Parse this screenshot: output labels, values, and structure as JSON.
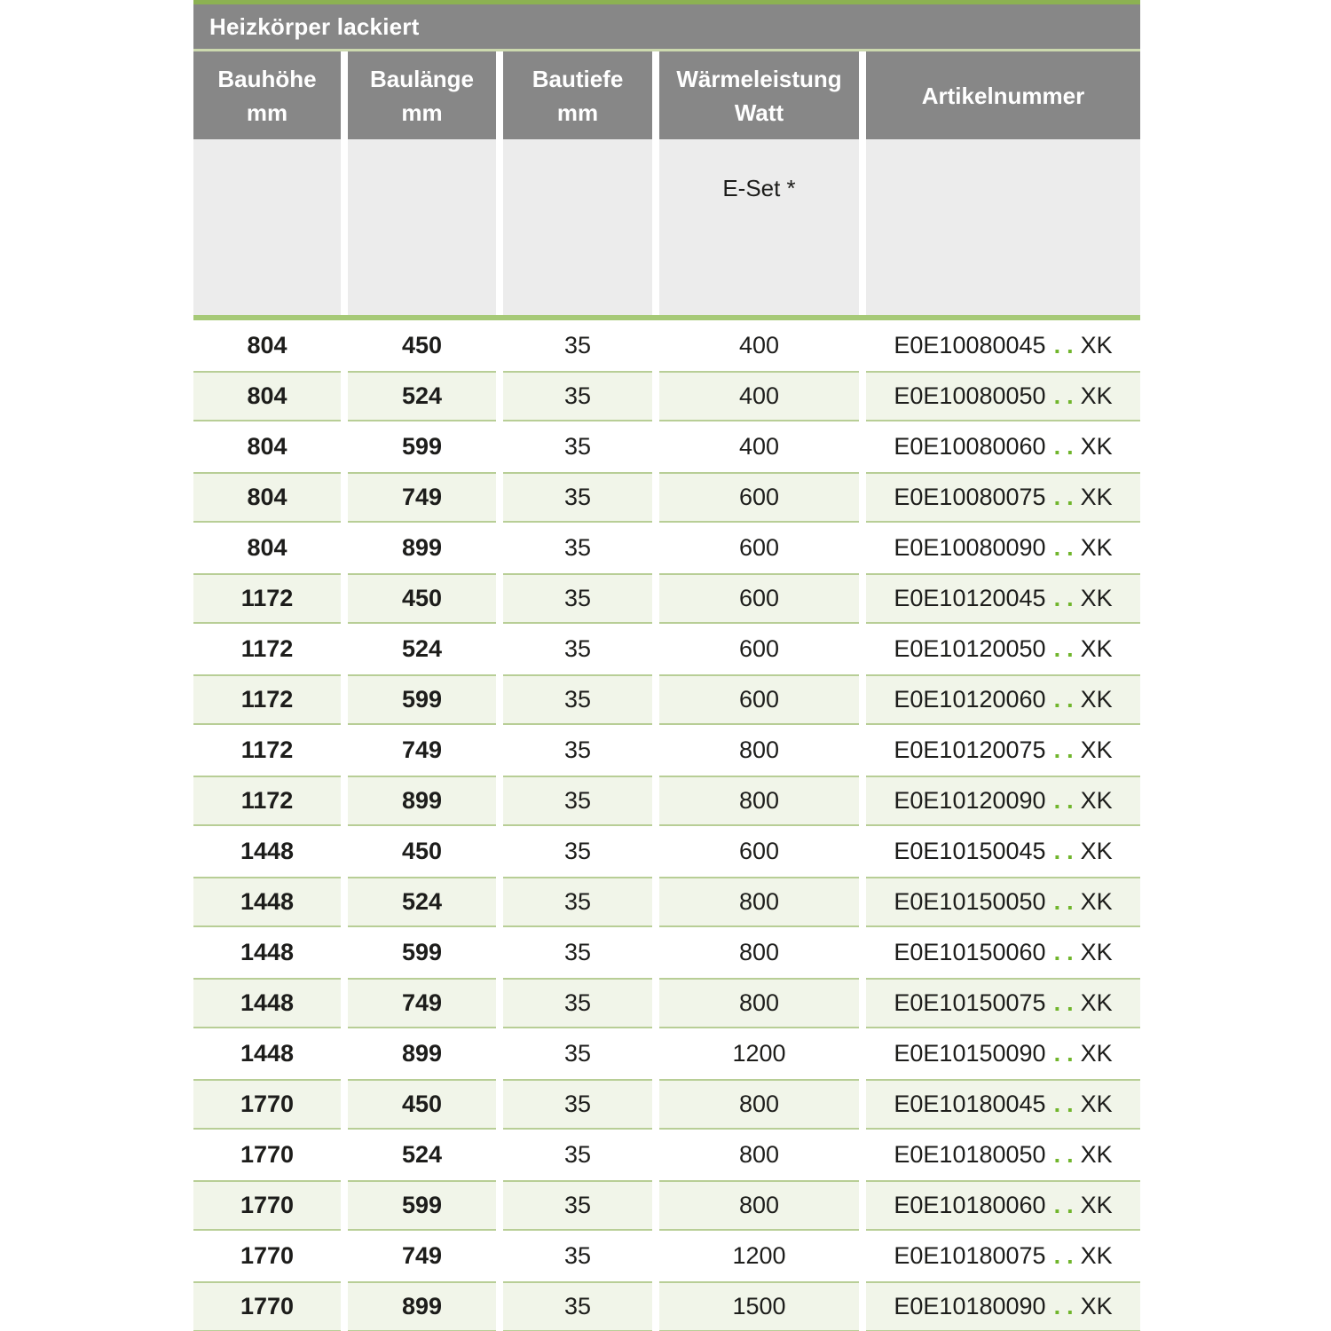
{
  "table": {
    "title": "Heizkörper lackiert",
    "columns": [
      {
        "label": "Bauhöhe",
        "unit": "mm"
      },
      {
        "label": "Baulänge",
        "unit": "mm"
      },
      {
        "label": "Bautiefe",
        "unit": "mm"
      },
      {
        "label": "Wärmeleistung",
        "unit": "Watt"
      },
      {
        "label": "Artikelnummer",
        "unit": ""
      }
    ],
    "subheader": {
      "eset_label": "E-Set *"
    },
    "colors": {
      "header_gray": "#878787",
      "subheader_gray": "#ececec",
      "top_accent_green": "#8cb152",
      "thin_line_green": "#ccd9ae",
      "separator_green": "#a6c977",
      "row_fill_green": "#f1f5e9",
      "row_border_green": "#b8ce96",
      "dot_green": "#70b52c",
      "text_dark": "#1d1d1b",
      "header_text": "#ffffff"
    },
    "rows": [
      {
        "bauhoehe": "804",
        "baulaenge": "450",
        "bautiefe": "35",
        "watt": "400",
        "artikel_prefix": "E0E10080045",
        "artikel_dots": "..",
        "artikel_suffix": "XK"
      },
      {
        "bauhoehe": "804",
        "baulaenge": "524",
        "bautiefe": "35",
        "watt": "400",
        "artikel_prefix": "E0E10080050",
        "artikel_dots": "..",
        "artikel_suffix": "XK"
      },
      {
        "bauhoehe": "804",
        "baulaenge": "599",
        "bautiefe": "35",
        "watt": "400",
        "artikel_prefix": "E0E10080060",
        "artikel_dots": "..",
        "artikel_suffix": "XK"
      },
      {
        "bauhoehe": "804",
        "baulaenge": "749",
        "bautiefe": "35",
        "watt": "600",
        "artikel_prefix": "E0E10080075",
        "artikel_dots": "..",
        "artikel_suffix": "XK"
      },
      {
        "bauhoehe": "804",
        "baulaenge": "899",
        "bautiefe": "35",
        "watt": "600",
        "artikel_prefix": "E0E10080090",
        "artikel_dots": "..",
        "artikel_suffix": "XK"
      },
      {
        "bauhoehe": "1172",
        "baulaenge": "450",
        "bautiefe": "35",
        "watt": "600",
        "artikel_prefix": "E0E10120045",
        "artikel_dots": "..",
        "artikel_suffix": "XK"
      },
      {
        "bauhoehe": "1172",
        "baulaenge": "524",
        "bautiefe": "35",
        "watt": "600",
        "artikel_prefix": "E0E10120050",
        "artikel_dots": "..",
        "artikel_suffix": "XK"
      },
      {
        "bauhoehe": "1172",
        "baulaenge": "599",
        "bautiefe": "35",
        "watt": "600",
        "artikel_prefix": "E0E10120060",
        "artikel_dots": "..",
        "artikel_suffix": "XK"
      },
      {
        "bauhoehe": "1172",
        "baulaenge": "749",
        "bautiefe": "35",
        "watt": "800",
        "artikel_prefix": "E0E10120075",
        "artikel_dots": "..",
        "artikel_suffix": "XK"
      },
      {
        "bauhoehe": "1172",
        "baulaenge": "899",
        "bautiefe": "35",
        "watt": "800",
        "artikel_prefix": "E0E10120090",
        "artikel_dots": "..",
        "artikel_suffix": "XK"
      },
      {
        "bauhoehe": "1448",
        "baulaenge": "450",
        "bautiefe": "35",
        "watt": "600",
        "artikel_prefix": "E0E10150045",
        "artikel_dots": "..",
        "artikel_suffix": "XK"
      },
      {
        "bauhoehe": "1448",
        "baulaenge": "524",
        "bautiefe": "35",
        "watt": "800",
        "artikel_prefix": "E0E10150050",
        "artikel_dots": "..",
        "artikel_suffix": "XK"
      },
      {
        "bauhoehe": "1448",
        "baulaenge": "599",
        "bautiefe": "35",
        "watt": "800",
        "artikel_prefix": "E0E10150060",
        "artikel_dots": "..",
        "artikel_suffix": "XK"
      },
      {
        "bauhoehe": "1448",
        "baulaenge": "749",
        "bautiefe": "35",
        "watt": "800",
        "artikel_prefix": "E0E10150075",
        "artikel_dots": "..",
        "artikel_suffix": "XK"
      },
      {
        "bauhoehe": "1448",
        "baulaenge": "899",
        "bautiefe": "35",
        "watt": "1200",
        "artikel_prefix": "E0E10150090",
        "artikel_dots": "..",
        "artikel_suffix": "XK"
      },
      {
        "bauhoehe": "1770",
        "baulaenge": "450",
        "bautiefe": "35",
        "watt": "800",
        "artikel_prefix": "E0E10180045",
        "artikel_dots": "..",
        "artikel_suffix": "XK"
      },
      {
        "bauhoehe": "1770",
        "baulaenge": "524",
        "bautiefe": "35",
        "watt": "800",
        "artikel_prefix": "E0E10180050",
        "artikel_dots": "..",
        "artikel_suffix": "XK"
      },
      {
        "bauhoehe": "1770",
        "baulaenge": "599",
        "bautiefe": "35",
        "watt": "800",
        "artikel_prefix": "E0E10180060",
        "artikel_dots": "..",
        "artikel_suffix": "XK"
      },
      {
        "bauhoehe": "1770",
        "baulaenge": "749",
        "bautiefe": "35",
        "watt": "1200",
        "artikel_prefix": "E0E10180075",
        "artikel_dots": "..",
        "artikel_suffix": "XK"
      },
      {
        "bauhoehe": "1770",
        "baulaenge": "899",
        "bautiefe": "35",
        "watt": "1500",
        "artikel_prefix": "E0E10180090",
        "artikel_dots": "..",
        "artikel_suffix": "XK"
      }
    ]
  }
}
